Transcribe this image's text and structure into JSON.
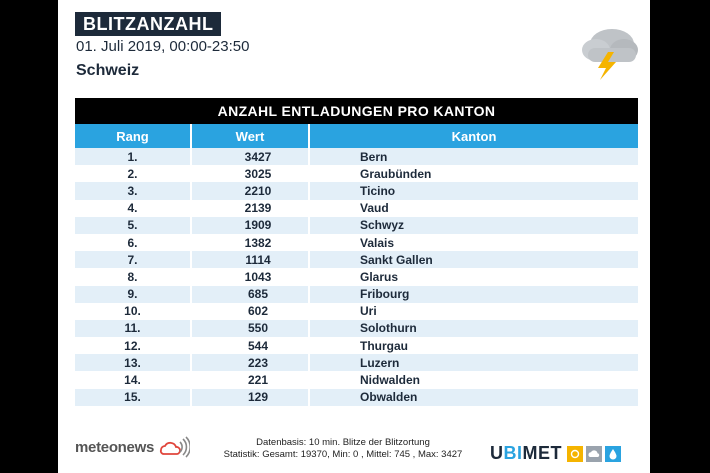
{
  "header": {
    "title": "BLITZANZAHL",
    "date": "01. Juli 2019, 00:00-23:50",
    "region": "Schweiz"
  },
  "table": {
    "title": "ANZAHL ENTLADUNGEN PRO KANTON",
    "columns": [
      "Rang",
      "Wert",
      "Kanton"
    ],
    "rows": [
      {
        "rank": "1.",
        "value": "3427",
        "canton": "Bern"
      },
      {
        "rank": "2.",
        "value": "3025",
        "canton": "Graubünden"
      },
      {
        "rank": "3.",
        "value": "2210",
        "canton": "Ticino"
      },
      {
        "rank": "4.",
        "value": "2139",
        "canton": "Vaud"
      },
      {
        "rank": "5.",
        "value": "1909",
        "canton": "Schwyz"
      },
      {
        "rank": "6.",
        "value": "1382",
        "canton": "Valais"
      },
      {
        "rank": "7.",
        "value": "1114",
        "canton": "Sankt Gallen"
      },
      {
        "rank": "8.",
        "value": "1043",
        "canton": "Glarus"
      },
      {
        "rank": "9.",
        "value": "685",
        "canton": "Fribourg"
      },
      {
        "rank": "10.",
        "value": "602",
        "canton": "Uri"
      },
      {
        "rank": "11.",
        "value": "550",
        "canton": "Solothurn"
      },
      {
        "rank": "12.",
        "value": "544",
        "canton": "Thurgau"
      },
      {
        "rank": "13.",
        "value": "223",
        "canton": "Luzern"
      },
      {
        "rank": "14.",
        "value": "221",
        "canton": "Nidwalden"
      },
      {
        "rank": "15.",
        "value": "129",
        "canton": "Obwalden"
      }
    ]
  },
  "footer": {
    "left_logo": "meteonews",
    "line1": "Datenbasis: 10 min. Blitze der Blitzortung",
    "line2": "Statistik: Gesamt: 19370, Min: 0 , Mittel: 745 , Max: 3427",
    "right_logo_a": "U",
    "right_logo_b": "BI",
    "right_logo_c": "MET"
  },
  "icons": {
    "weather": "thunderstorm-cloud-icon",
    "meteonews": "meteonews-cloud-icon"
  },
  "colors": {
    "navy": "#1d2a3a",
    "header_blue": "#2aa3e0",
    "row_stripe": "#e3eff8",
    "lightning": "#f5b400"
  }
}
